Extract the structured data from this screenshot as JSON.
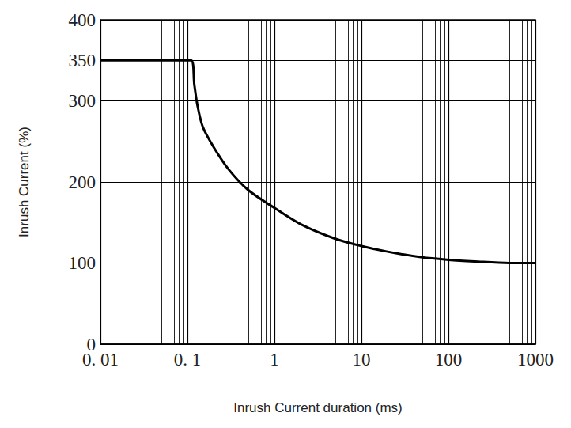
{
  "chart_data": {
    "type": "line",
    "xlabel": "Inrush Current duration (ms)",
    "ylabel": "Inrush Current (%)",
    "x": [
      0.01,
      0.11,
      0.12,
      0.13,
      0.15,
      0.2,
      0.3,
      0.5,
      1,
      2,
      5,
      10,
      20,
      50,
      100,
      200,
      500,
      1000
    ],
    "values": [
      350,
      350,
      320,
      295,
      268,
      243,
      215,
      190,
      168,
      148,
      130,
      121,
      114,
      107,
      104,
      102,
      100,
      100
    ],
    "color": "#000000",
    "log": "x",
    "xlim": [
      0.01,
      1000
    ],
    "xticks": [
      {
        "value": 0.01,
        "label": "0. 01"
      },
      {
        "value": 0.1,
        "label": "0. 1"
      },
      1,
      10,
      100,
      1000
    ],
    "ylim": [
      0,
      400
    ],
    "yticks": [
      0,
      100,
      200,
      300,
      350,
      400
    ],
    "grid": true
  }
}
